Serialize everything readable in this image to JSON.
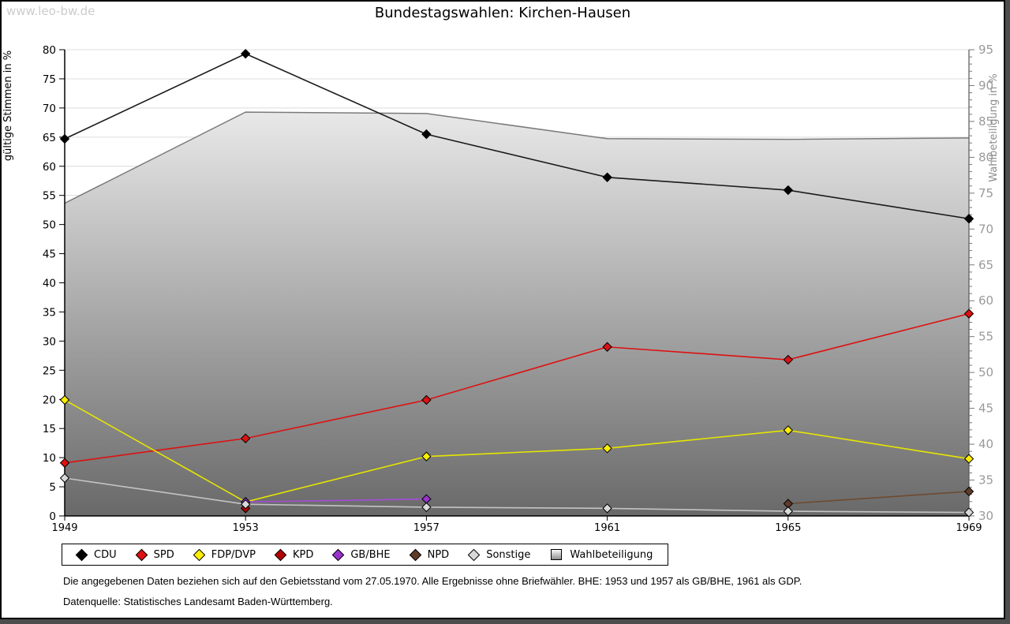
{
  "page": {
    "watermark": "www.leo-bw.de",
    "title": "Bundestagswahlen: Kirchen-Hausen",
    "footnote1": "Die angegebenen Daten beziehen sich auf den Gebietsstand vom 27.05.1970. Alle Ergebnisse ohne Briefwähler. BHE: 1953 und 1957 als GB/BHE, 1961 als GDP.",
    "footnote2": "Datenquelle: Statistisches Landesamt Baden-Württemberg."
  },
  "chart_data": {
    "type": "line",
    "title": "Bundestagswahlen: Kirchen-Hausen",
    "categories": [
      1949,
      1953,
      1957,
      1961,
      1965,
      1969
    ],
    "left_axis": {
      "label": "gültige Stimmen in %",
      "min": 0,
      "max": 80,
      "tick_step": 5
    },
    "right_axis": {
      "label": "Wahlbeteiligung in %",
      "min": 30,
      "max": 95,
      "tick_step": 5,
      "minor_step": 1
    },
    "grid": true,
    "legend_position": "bottom",
    "series": [
      {
        "name": "CDU",
        "type": "line",
        "axis": "left",
        "color": "#000000",
        "line_color": "#1a1a1a",
        "values": [
          64.7,
          79.3,
          65.5,
          58.1,
          55.9,
          51.0
        ]
      },
      {
        "name": "SPD",
        "type": "line",
        "axis": "left",
        "color": "#dd1111",
        "line_color": "#dd1111",
        "values": [
          9.1,
          13.3,
          19.9,
          29.0,
          26.8,
          34.7
        ]
      },
      {
        "name": "FDP/DVP",
        "type": "line",
        "axis": "left",
        "color": "#ffee00",
        "line_color": "#e6e600",
        "values": [
          19.9,
          2.4,
          10.2,
          11.6,
          14.7,
          9.8
        ]
      },
      {
        "name": "KPD",
        "type": "line",
        "axis": "left",
        "color": "#b30000",
        "line_color": "#b30000",
        "values": [
          null,
          1.3,
          null,
          null,
          null,
          null
        ]
      },
      {
        "name": "GB/BHE",
        "type": "line",
        "axis": "left",
        "color": "#9933cc",
        "line_color": "#a64dd9",
        "values": [
          null,
          2.4,
          2.9,
          null,
          null,
          null
        ]
      },
      {
        "name": "NPD",
        "type": "line",
        "axis": "left",
        "color": "#5f3b28",
        "line_color": "#6e4a2f",
        "values": [
          null,
          null,
          null,
          null,
          2.1,
          4.2
        ]
      },
      {
        "name": "Sonstige",
        "type": "line",
        "axis": "left",
        "color": "#d9d9d9",
        "line_color": "#c4c4c4",
        "values": [
          6.5,
          2.0,
          1.5,
          1.3,
          0.8,
          0.6
        ]
      },
      {
        "name": "Wahlbeteiligung",
        "type": "area",
        "axis": "right",
        "color": "#aaaaaa",
        "line_color": "#7a7a7a",
        "values": [
          73.6,
          86.3,
          86.1,
          82.6,
          82.5,
          82.7
        ]
      }
    ]
  }
}
